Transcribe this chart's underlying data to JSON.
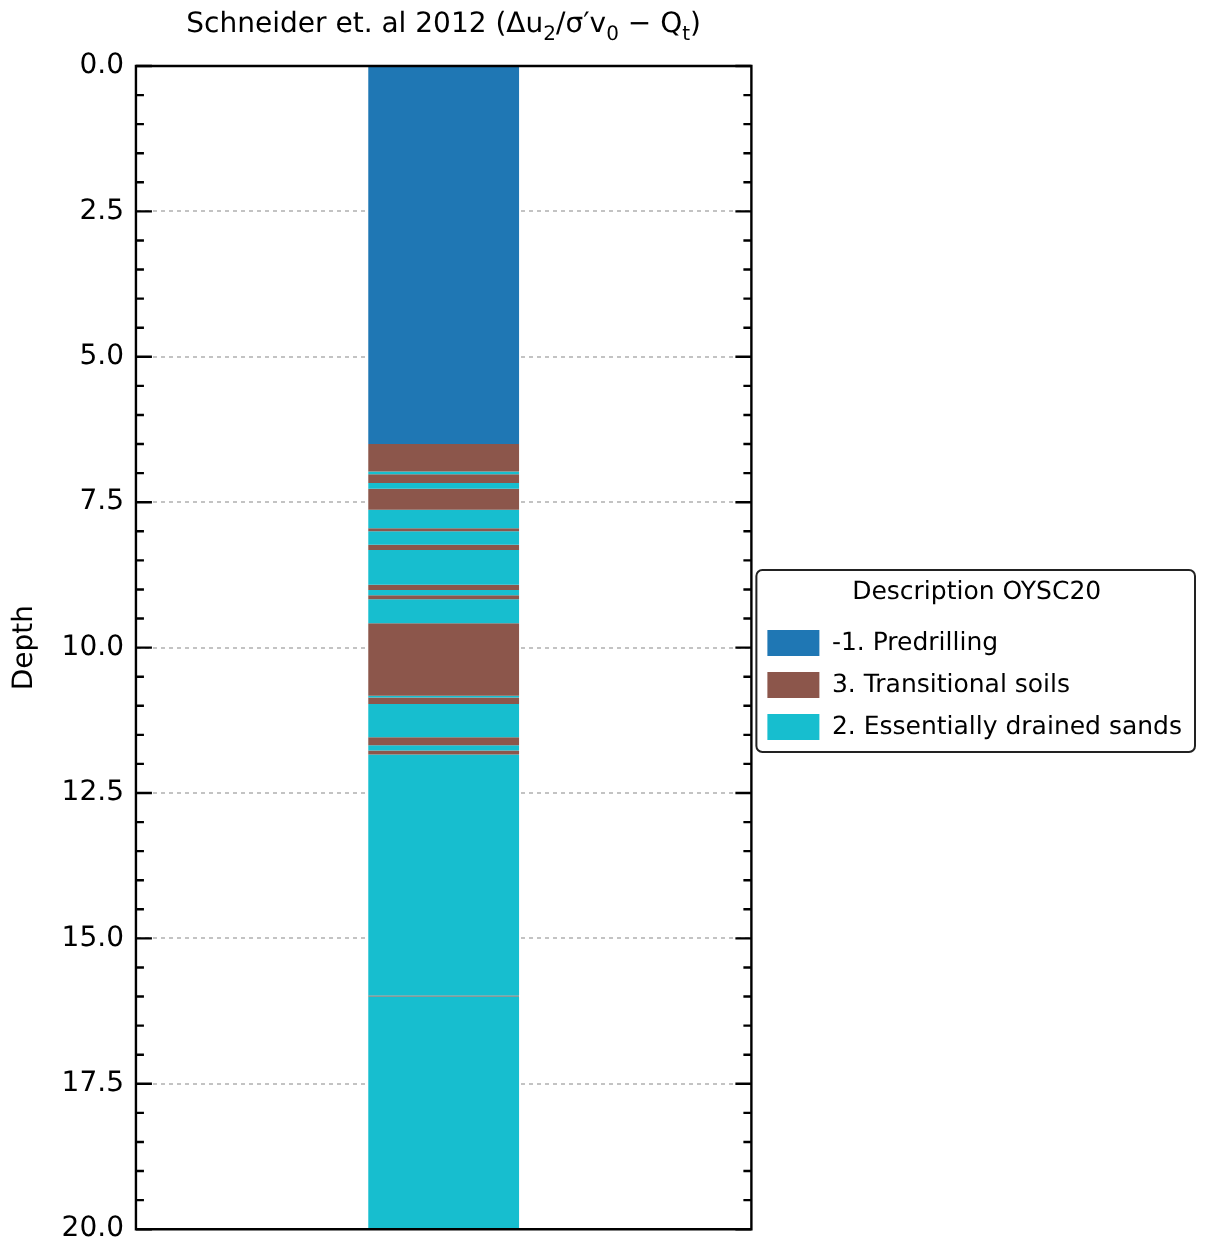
{
  "chart_data": {
    "type": "bar",
    "title": "Schneider et. al 2012 (Δu$_{2}$/σ′v$_{0}$ − Q$_{t}$)",
    "ylabel": "Depth",
    "legend_title": "Description OYSC20",
    "legend": "right",
    "grid": "y",
    "tick_labels": "y",
    "stacked": true,
    "categories": [
      null
    ],
    "ylim": [
      20,
      0
    ],
    "yticks": [
      {
        "value": 0,
        "label": "0.0"
      },
      {
        "value": 0.5,
        "label": null
      },
      {
        "value": 1,
        "label": null
      },
      {
        "value": 1.5,
        "label": null
      },
      {
        "value": 2,
        "label": null
      },
      2.5,
      {
        "value": 3,
        "label": null
      },
      {
        "value": 3.5,
        "label": null
      },
      {
        "value": 4,
        "label": null
      },
      {
        "value": 4.5,
        "label": null
      },
      {
        "value": 5,
        "label": "5.0"
      },
      {
        "value": 5.5,
        "label": null
      },
      {
        "value": 6,
        "label": null
      },
      {
        "value": 6.5,
        "label": null
      },
      {
        "value": 7,
        "label": null
      },
      7.5,
      {
        "value": 8,
        "label": null
      },
      {
        "value": 8.5,
        "label": null
      },
      {
        "value": 9,
        "label": null
      },
      {
        "value": 9.5,
        "label": null
      },
      {
        "value": 10,
        "label": "10.0"
      },
      {
        "value": 10.5,
        "label": null
      },
      {
        "value": 11,
        "label": null
      },
      {
        "value": 11.5,
        "label": null
      },
      {
        "value": 12,
        "label": null
      },
      12.5,
      {
        "value": 13,
        "label": null
      },
      {
        "value": 13.5,
        "label": null
      },
      {
        "value": 14,
        "label": null
      },
      {
        "value": 14.5,
        "label": null
      },
      {
        "value": 15,
        "label": "15.0"
      },
      {
        "value": 15.5,
        "label": null
      },
      {
        "value": 16,
        "label": null
      },
      {
        "value": 16.5,
        "label": null
      },
      {
        "value": 17,
        "label": null
      },
      17.5,
      {
        "value": 18,
        "label": null
      },
      {
        "value": 18.5,
        "label": null
      },
      {
        "value": 19,
        "label": null
      },
      {
        "value": 19.5,
        "label": null
      },
      {
        "value": 20,
        "label": "20.0"
      }
    ],
    "series": [
      {
        "name": "-1. Predrilling",
        "color": "#1f77b4",
        "values": [
          6.5
        ]
      },
      {
        "name": "3. Transitional soils",
        "color": "#8c564b",
        "values": [
          0.47
        ]
      },
      {
        "name": "2. Essentially drained sands",
        "color": "#17becf",
        "values": [
          0.05
        ]
      },
      {
        "color": "#8c564b",
        "values": [
          0.15
        ]
      },
      {
        "color": "#17becf",
        "values": [
          0.1
        ]
      },
      {
        "color": "#8c564b",
        "values": [
          0.36
        ]
      },
      {
        "color": "#17becf",
        "values": [
          0.32
        ]
      },
      {
        "color": "#8c564b",
        "values": [
          0.05
        ]
      },
      {
        "color": "#17becf",
        "values": [
          0.23
        ]
      },
      {
        "color": "#8c564b",
        "values": [
          0.09
        ]
      },
      {
        "color": "#17becf",
        "values": [
          0.6
        ]
      },
      {
        "color": "#8c564b",
        "values": [
          0.09
        ]
      },
      {
        "color": "#17becf",
        "values": [
          0.09
        ]
      },
      {
        "color": "#8c564b",
        "values": [
          0.07
        ]
      },
      {
        "color": "#17becf",
        "values": [
          0.41
        ]
      },
      {
        "color": "#8c564b",
        "values": [
          1.25
        ]
      },
      {
        "color": "#17becf",
        "values": [
          0.03
        ]
      },
      {
        "color": "#8c564b",
        "values": [
          0.11
        ]
      },
      {
        "color": "#17becf",
        "values": [
          0.57
        ]
      },
      {
        "color": "#8c564b",
        "values": [
          0.14
        ]
      },
      {
        "color": "#17becf",
        "values": [
          0.09
        ]
      },
      {
        "color": "#8c564b",
        "values": [
          0.07
        ]
      },
      {
        "color": "#17becf",
        "values": [
          4.14
        ]
      },
      {
        "color": "#8c564b",
        "values": [
          0.02
        ]
      },
      {
        "color": "#17becf",
        "values": [
          4.0
        ]
      }
    ]
  }
}
